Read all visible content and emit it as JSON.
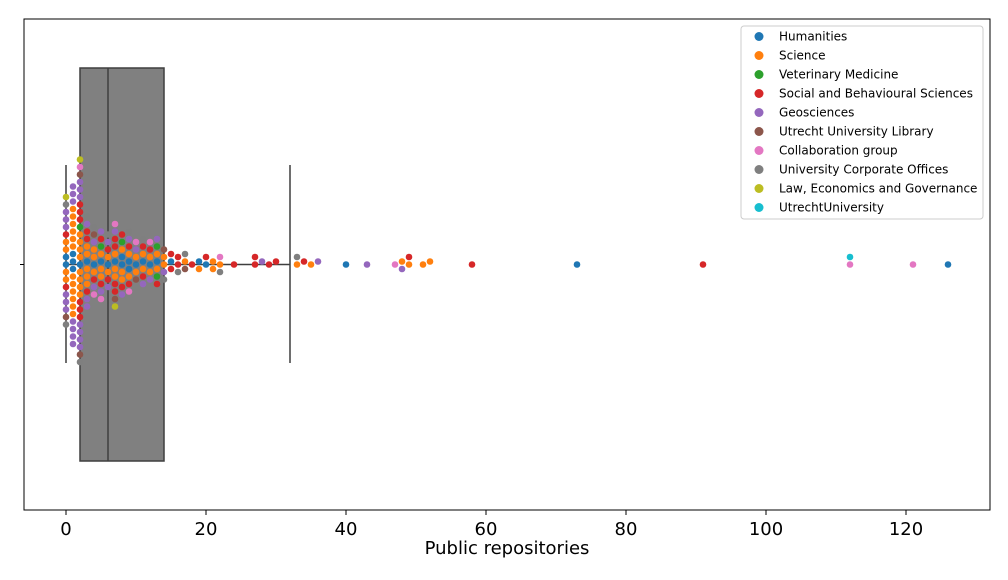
{
  "chart_data": {
    "type": "scatter",
    "subtype": "box plot with swarm overlay",
    "xlabel": "Public repositories",
    "ylabel": "",
    "xlim": [
      -6,
      132
    ],
    "xticks": [
      0,
      20,
      40,
      60,
      80,
      100,
      120
    ],
    "grid": false,
    "legend_position": "top-right",
    "box": {
      "whisker_low": 0,
      "q1": 2,
      "median": 6,
      "q3": 14,
      "whisker_high": 32,
      "color": "#808080"
    },
    "series": [
      {
        "name": "Humanities",
        "color": "#1f77b4",
        "values": [
          0,
          0,
          1,
          1,
          1,
          2,
          3,
          4,
          5,
          6,
          7,
          8,
          8,
          9,
          9,
          10,
          11,
          12,
          13,
          15,
          19,
          20,
          40,
          73,
          126
        ]
      },
      {
        "name": "Science",
        "color": "#ff7f0e",
        "values": [
          0,
          0,
          0,
          0,
          1,
          1,
          1,
          1,
          1,
          1,
          1,
          1,
          1,
          1,
          1,
          1,
          2,
          2,
          2,
          2,
          2,
          2,
          2,
          2,
          3,
          3,
          3,
          3,
          3,
          4,
          4,
          4,
          5,
          5,
          5,
          6,
          6,
          7,
          7,
          7,
          8,
          8,
          8,
          9,
          9,
          10,
          10,
          11,
          11,
          12,
          12,
          13,
          13,
          14,
          14,
          17,
          19,
          21,
          21,
          22,
          33,
          35,
          48,
          49,
          51,
          52
        ]
      },
      {
        "name": "Veterinary Medicine",
        "color": "#2ca02c",
        "values": [
          2,
          5,
          8,
          13,
          13
        ]
      },
      {
        "name": "Social and Behavioural Sciences",
        "color": "#d62728",
        "values": [
          0,
          0,
          2,
          2,
          2,
          2,
          2,
          2,
          3,
          3,
          3,
          4,
          5,
          5,
          6,
          6,
          7,
          7,
          7,
          7,
          8,
          8,
          9,
          9,
          11,
          11,
          12,
          13,
          15,
          15,
          16,
          16,
          18,
          20,
          24,
          27,
          27,
          29,
          30,
          34,
          49,
          58,
          91
        ]
      },
      {
        "name": "Geosciences",
        "color": "#9467bd",
        "values": [
          0,
          0,
          0,
          0,
          0,
          0,
          1,
          1,
          1,
          1,
          1,
          1,
          1,
          2,
          2,
          2,
          2,
          2,
          2,
          2,
          3,
          3,
          3,
          4,
          4,
          5,
          5,
          6,
          6,
          7,
          8,
          9,
          10,
          11,
          12,
          13,
          14,
          28,
          36,
          43,
          48
        ]
      },
      {
        "name": "Utrecht University Library",
        "color": "#8c564b",
        "values": [
          0,
          2,
          2,
          4,
          7,
          10,
          14,
          17
        ]
      },
      {
        "name": "Collaboration group",
        "color": "#e377c2",
        "values": [
          2,
          4,
          5,
          7,
          9,
          10,
          12,
          22,
          47,
          112,
          121
        ]
      },
      {
        "name": "University Corporate Offices",
        "color": "#7f7f7f",
        "values": [
          0,
          0,
          2,
          3,
          4,
          6,
          9,
          11,
          14,
          16,
          17,
          22,
          33
        ]
      },
      {
        "name": "Law, Economics and Governance",
        "color": "#bcbd22",
        "values": [
          0,
          2,
          7
        ]
      },
      {
        "name": "UtrechtUniversity",
        "color": "#17becf",
        "values": [
          112
        ]
      }
    ]
  }
}
